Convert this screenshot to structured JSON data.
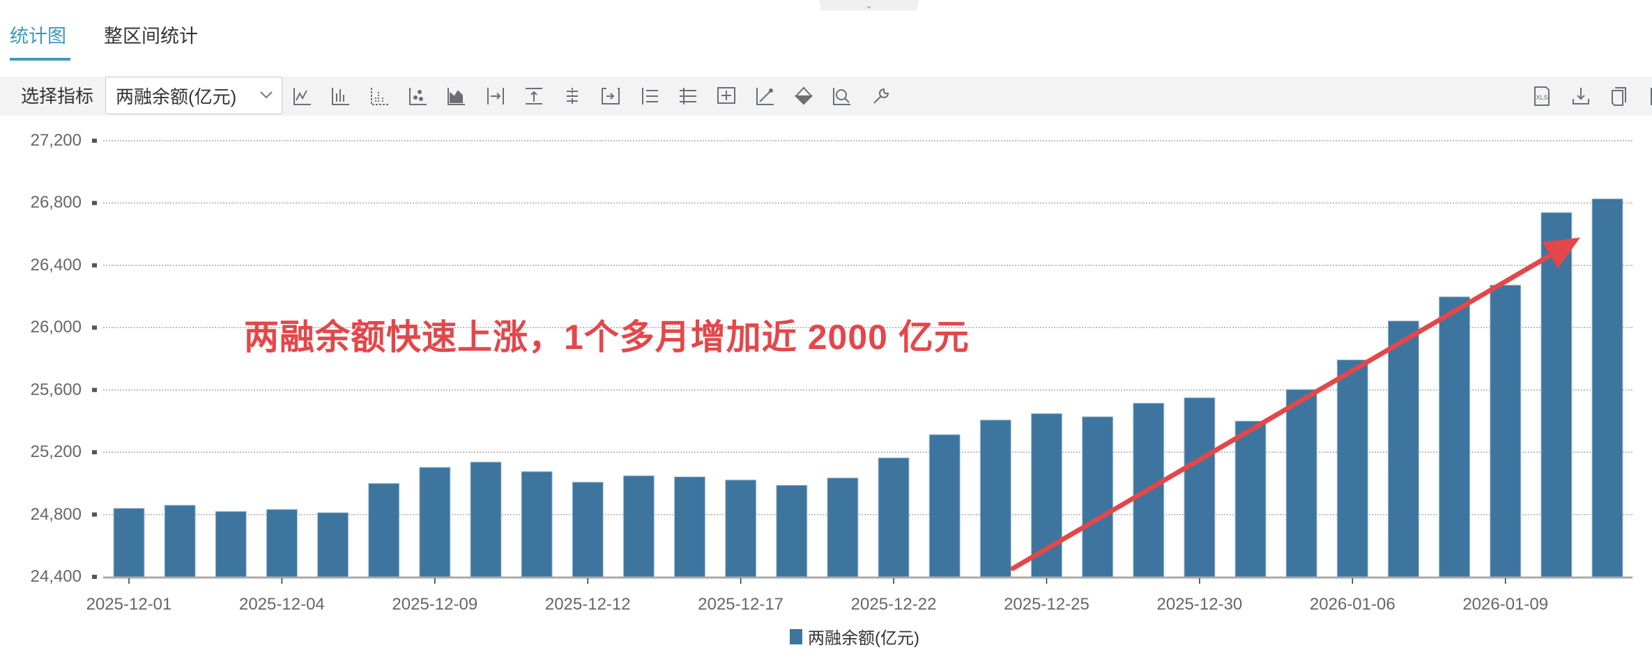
{
  "tabs": [
    {
      "label": "统计图",
      "active": true
    },
    {
      "label": "整区间统计",
      "active": false
    }
  ],
  "toolbar": {
    "select_label": "选择指标",
    "selected_indicator": "两融余额(亿元)",
    "left_icons": [
      "line-chart-icon",
      "bar-chart-icon",
      "grouped-bar-icon",
      "scatter-icon",
      "area-chart-icon",
      "align-right-icon",
      "align-top-icon",
      "center-axis-icon",
      "move-right-icon",
      "list-icon",
      "horizontal-lines-icon",
      "add-frame-icon",
      "trend-line-icon",
      "fill-color-icon",
      "zoom-search-icon",
      "wrench-icon"
    ],
    "right_icons": [
      "xls-export-icon",
      "download-icon",
      "copy-icon",
      "panel-icon"
    ]
  },
  "colors": {
    "bar": "#3d759e",
    "accent": "#3d98b8",
    "annotation": "#e3474a"
  },
  "chart_data": {
    "type": "bar",
    "title": "",
    "xlabel": "",
    "ylabel": "",
    "ylim": [
      24400,
      27200
    ],
    "yticks": [
      24400,
      24800,
      25200,
      25600,
      26000,
      26400,
      26800,
      27200
    ],
    "ytick_labels": [
      "24,400",
      "24,800",
      "25,200",
      "25,600",
      "26,000",
      "26,400",
      "26,800",
      "27,200"
    ],
    "grid": "horizontal-dotted",
    "legend_placement": "bottom",
    "x_tick_labels": [
      "2025-12-01",
      "",
      "",
      "2025-12-04",
      "",
      "",
      "2025-12-09",
      "",
      "",
      "2025-12-12",
      "",
      "",
      "2025-12-17",
      "",
      "",
      "2025-12-22",
      "",
      "",
      "2025-12-25",
      "",
      "",
      "2025-12-30",
      "",
      "",
      "2026-01-06",
      "",
      "",
      "2026-01-09",
      "",
      ""
    ],
    "series": [
      {
        "name": "两融余额(亿元)",
        "values": [
          24840,
          24860,
          24820,
          24833,
          24812,
          25000,
          25103,
          25137,
          25076,
          25008,
          25049,
          25042,
          25022,
          24988,
          25035,
          25164,
          25313,
          25407,
          25448,
          25428,
          25515,
          25550,
          25400,
          25603,
          25793,
          26043,
          26198,
          26273,
          26739,
          26827
        ]
      }
    ],
    "annotation": "两融余额快速上涨，1个多月增加近 2000 亿元",
    "annotation_arrow": {
      "from_index": 18,
      "to_index": 28,
      "direction": "up-right"
    }
  }
}
